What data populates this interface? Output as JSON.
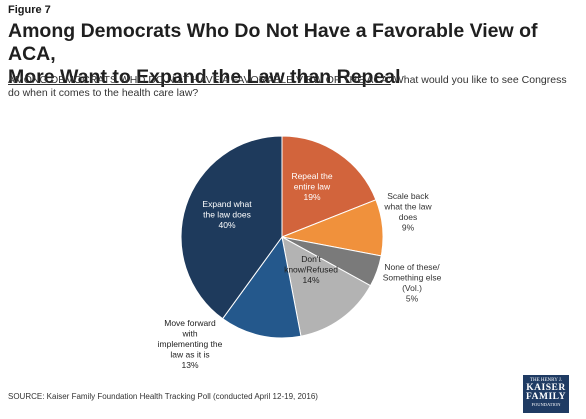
{
  "figure_label": "Figure 7",
  "title_line1": "Among Democrats Who Do Not Have a Favorable View of ACA,",
  "title_line2": "More Want to Expand the Law than Repeal",
  "question_upper": "AMONG DEMOCRATS WHO DO NOT HAVE A FAVORABLE VIEW OF THE ACA:",
  "question_text": " What would you like to see Congress do when it comes to the health care law?",
  "source": "SOURCE: Kaiser Family Foundation Health Tracking Poll (conducted April 12-19, 2016)",
  "logo": {
    "line1": "THE HENRY J.",
    "line2": "KAISER",
    "line3": "FAMILY",
    "line4": "FOUNDATION"
  },
  "chart_data": {
    "type": "pie",
    "slices": [
      {
        "label_lines": [
          "Repeal the",
          "entire law"
        ],
        "value": 19,
        "value_label": "19%",
        "color": "#d2643c"
      },
      {
        "label_lines": [
          "Scale back",
          "what the law",
          "does"
        ],
        "value": 9,
        "value_label": "9%",
        "color": "#f0913c"
      },
      {
        "label_lines": [
          "None of these/",
          "Something else",
          "(Vol.)"
        ],
        "value": 5,
        "value_label": "5%",
        "color": "#7a7a7a"
      },
      {
        "label_lines": [
          "Don't",
          "know/Refused"
        ],
        "value": 14,
        "value_label": "14%",
        "color": "#b3b3b3"
      },
      {
        "label_lines": [
          "Move forward",
          "with",
          "implementing the",
          "law as it is"
        ],
        "value": 13,
        "value_label": "13%",
        "color": "#24588c"
      },
      {
        "label_lines": [
          "Expand what",
          "the law does"
        ],
        "value": 40,
        "value_label": "40%",
        "color": "#1e3a5c"
      }
    ]
  }
}
